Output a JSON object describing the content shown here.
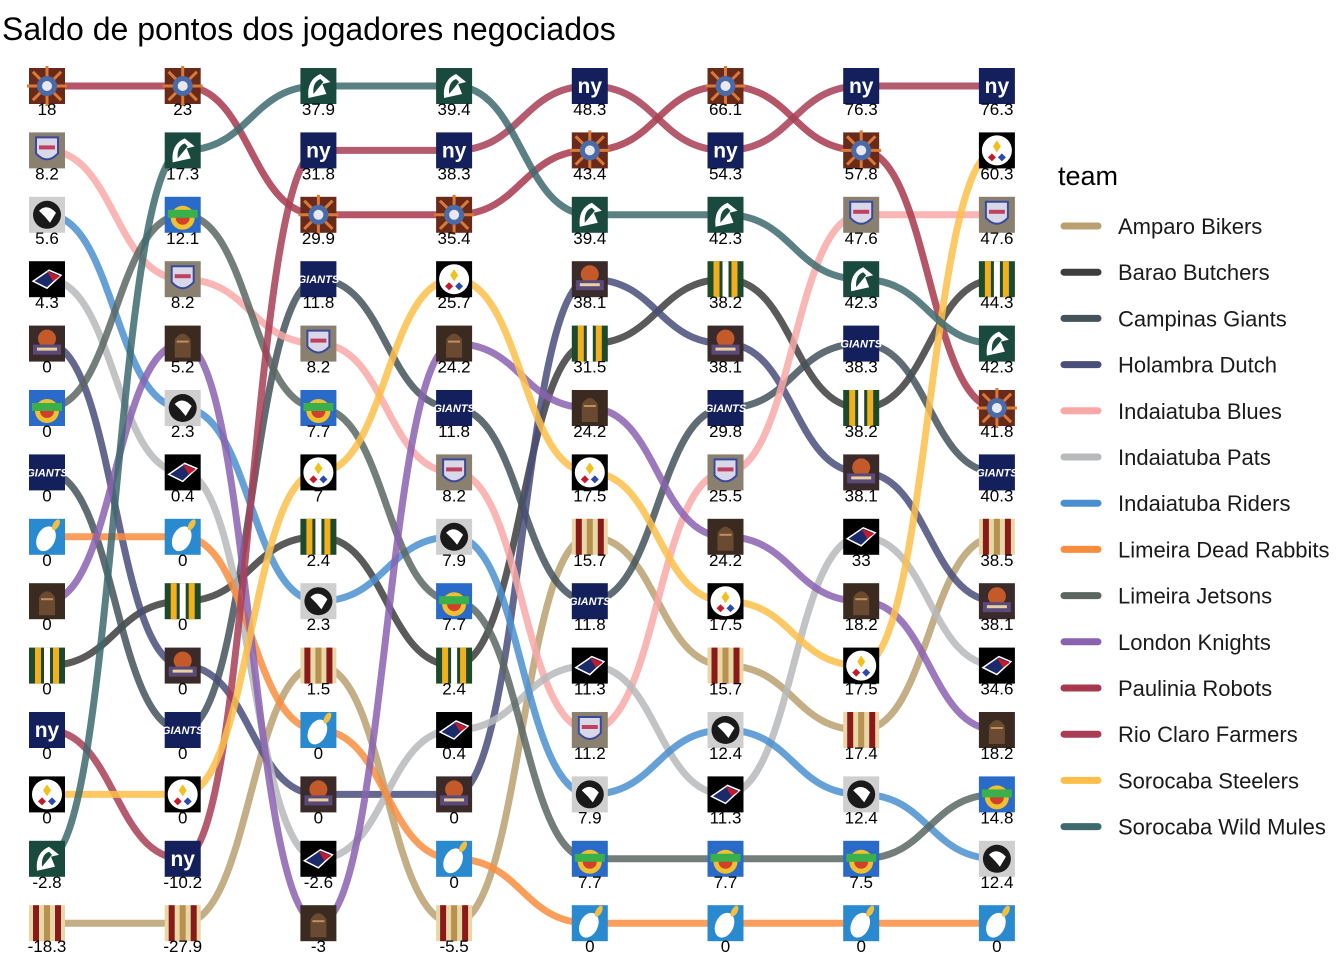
{
  "chart_data": {
    "type": "bump",
    "title": "Saldo de pontos dos jogadores negociados",
    "legend": {
      "title": "team",
      "position": "right"
    },
    "grid": false,
    "rounds": 8,
    "teams": [
      {
        "name": "Amparo Bikers",
        "color": "#B8A070",
        "logo": "amparo-helmet",
        "values": [
          -18.3,
          -27.9,
          1.5,
          -5.5,
          15.7,
          15.7,
          17.4,
          38.5
        ],
        "ranks": [
          14,
          14,
          10,
          14,
          8,
          10,
          11,
          8
        ]
      },
      {
        "name": "Barao Butchers",
        "color": "#3D3D3D",
        "logo": "barao-helmet",
        "values": [
          0,
          0,
          2.4,
          2.4,
          31.5,
          38.2,
          38.2,
          44.3
        ],
        "ranks": [
          10,
          9,
          8,
          10,
          5,
          4,
          6,
          4
        ]
      },
      {
        "name": "Campinas Giants",
        "color": "#44525A",
        "logo": "giants-logo",
        "values": [
          0,
          0,
          11.8,
          11.8,
          11.8,
          29.8,
          38.3,
          40.3
        ],
        "ranks": [
          7,
          11,
          4,
          6,
          9,
          6,
          5,
          7
        ]
      },
      {
        "name": "Holambra Dutch",
        "color": "#4A4E7A",
        "logo": "dutch-logo",
        "values": [
          0,
          0,
          0,
          0,
          38.1,
          38.1,
          38.1,
          38.1
        ],
        "ranks": [
          5,
          10,
          12,
          12,
          4,
          5,
          7,
          9
        ]
      },
      {
        "name": "Indaiatuba Blues",
        "color": "#F9A8A8",
        "logo": "blues-logo",
        "values": [
          8.2,
          8.2,
          8.2,
          8.2,
          11.2,
          25.5,
          47.6,
          47.6
        ],
        "ranks": [
          2,
          4,
          5,
          7,
          11,
          7,
          3,
          3
        ]
      },
      {
        "name": "Indaiatuba Pats",
        "color": "#B7B9BB",
        "logo": "pats-logo",
        "values": [
          4.3,
          0.4,
          -2.6,
          0.4,
          11.3,
          11.3,
          33,
          34.6
        ],
        "ranks": [
          4,
          7,
          13,
          11,
          10,
          12,
          8,
          10
        ]
      },
      {
        "name": "Indaiatuba Riders",
        "color": "#4A90D0",
        "logo": "riders-logo",
        "values": [
          5.6,
          2.3,
          2.3,
          7.9,
          7.9,
          12.4,
          12.4,
          12.4
        ],
        "ranks": [
          3,
          6,
          9,
          8,
          12,
          11,
          12,
          13
        ]
      },
      {
        "name": "Limeira Dead Rabbits",
        "color": "#F98D3E",
        "logo": "rabbits-logo",
        "values": [
          0,
          0,
          0,
          0,
          0,
          0,
          0,
          0
        ],
        "ranks": [
          8,
          8,
          11,
          13,
          14,
          14,
          14,
          14
        ]
      },
      {
        "name": "Limeira Jetsons",
        "color": "#5B6661",
        "logo": "jetsons-logo",
        "values": [
          0,
          12.1,
          7.7,
          7.7,
          7.7,
          7.7,
          7.5,
          14.8
        ],
        "ranks": [
          6,
          3,
          6,
          9,
          13,
          13,
          13,
          12
        ]
      },
      {
        "name": "London Knights",
        "color": "#8A62B0",
        "logo": "knights-logo",
        "values": [
          0,
          5.2,
          -3,
          24.2,
          24.2,
          24.2,
          18.2,
          18.2
        ],
        "ranks": [
          9,
          5,
          14,
          5,
          6,
          8,
          9,
          11
        ]
      },
      {
        "name": "Paulinia Robots",
        "color": "#A8384E",
        "logo": "robots-logo",
        "values": [
          18,
          23,
          29.9,
          35.4,
          43.4,
          66.1,
          57.8,
          41.8
        ],
        "ranks": [
          1,
          1,
          3,
          3,
          2,
          1,
          2,
          6
        ]
      },
      {
        "name": "Rio Claro Farmers",
        "color": "#A83E56",
        "logo": "farmers-logo",
        "values": [
          0,
          -10.2,
          31.8,
          38.3,
          48.3,
          54.3,
          76.3,
          76.3
        ],
        "ranks": [
          11,
          13,
          2,
          2,
          1,
          2,
          1,
          1
        ]
      },
      {
        "name": "Sorocaba Steelers",
        "color": "#FDBF4A",
        "logo": "steelers-logo",
        "values": [
          0,
          0,
          7,
          25.7,
          17.5,
          17.5,
          17.5,
          60.3
        ],
        "ranks": [
          12,
          12,
          7,
          4,
          7,
          9,
          10,
          2
        ]
      },
      {
        "name": "Sorocaba Wild Mules",
        "color": "#3E6A6F",
        "logo": "mules-logo",
        "values": [
          -2.8,
          17.3,
          37.9,
          39.4,
          39.4,
          42.3,
          42.3,
          42.3
        ],
        "ranks": [
          13,
          2,
          1,
          1,
          3,
          3,
          4,
          5
        ]
      }
    ]
  }
}
